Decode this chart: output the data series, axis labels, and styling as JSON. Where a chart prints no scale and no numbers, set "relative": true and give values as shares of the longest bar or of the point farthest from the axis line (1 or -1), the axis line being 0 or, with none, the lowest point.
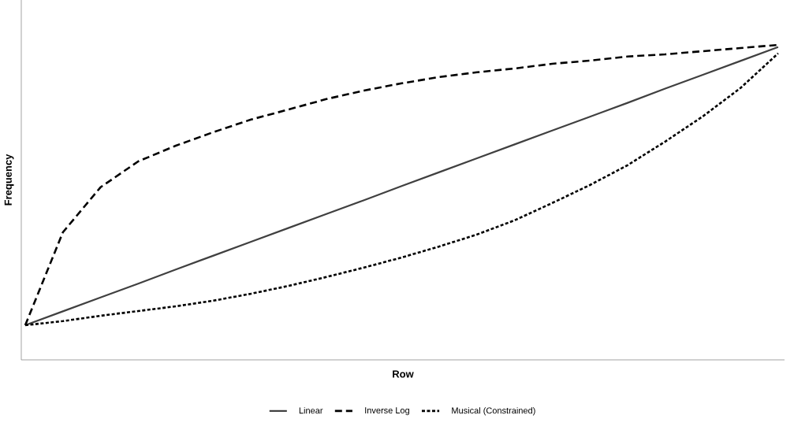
{
  "chart_data": {
    "type": "line",
    "relative": true,
    "xlabel": "Row",
    "ylabel": "Frequency",
    "legend": "bottom",
    "categories": [
      null,
      null,
      null,
      null,
      null,
      null,
      null,
      null,
      null,
      null,
      null,
      null,
      null,
      null,
      null,
      null,
      null,
      null,
      null,
      null,
      null
    ],
    "series": [
      {
        "name": "Linear",
        "color": "#404040",
        "line_style": "solid",
        "values": [
          0.11,
          0.154,
          0.198,
          0.242,
          0.287,
          0.331,
          0.375,
          0.419,
          0.463,
          0.507,
          0.552,
          0.596,
          0.64,
          0.684,
          0.728,
          0.772,
          0.816,
          0.861,
          0.905,
          0.949,
          0.993
        ]
      },
      {
        "name": "Inverse Log",
        "color": "#000000",
        "line_style": "dashed",
        "values": [
          0.11,
          0.405,
          0.548,
          0.63,
          0.68,
          0.723,
          0.763,
          0.795,
          0.828,
          0.855,
          0.878,
          0.898,
          0.913,
          0.925,
          0.94,
          0.95,
          0.963,
          0.97,
          0.98,
          0.99,
          1
        ]
      },
      {
        "name": "Musical (Constrained)",
        "color": "#000000",
        "line_style": "dotted",
        "values": [
          0.11,
          0.123,
          0.14,
          0.155,
          0.17,
          0.188,
          0.21,
          0.235,
          0.263,
          0.293,
          0.325,
          0.36,
          0.398,
          0.443,
          0.498,
          0.555,
          0.618,
          0.693,
          0.773,
          0.863,
          0.973
        ]
      }
    ]
  }
}
